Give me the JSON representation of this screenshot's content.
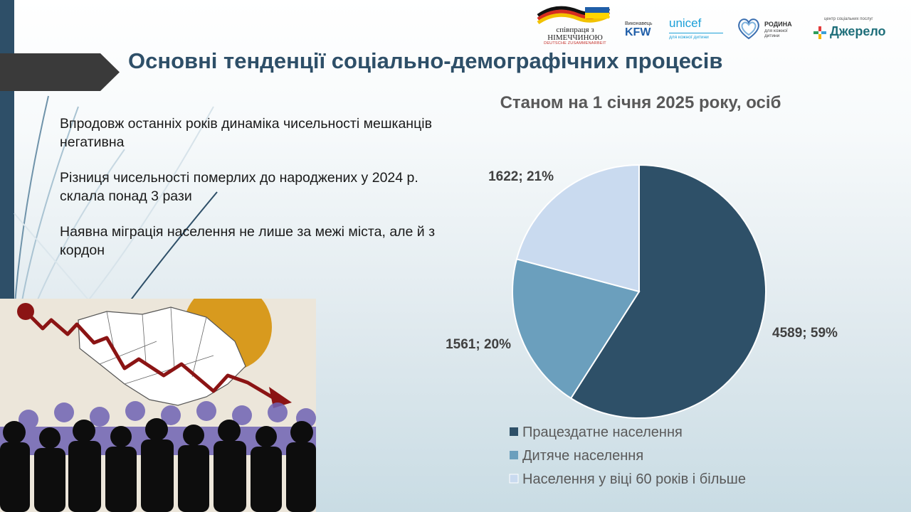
{
  "slide": {
    "title": "Основні тенденції соціально-демографічних процесів",
    "bullets": [
      "Впродовж останніх років динаміка чисельності мешканців негативна",
      "Різниця чисельності померлих до народжених у 2024 р. склала понад 3 рази",
      "Наявна міграція населення не лише за межі міста, але й з кордон"
    ]
  },
  "logos": {
    "giz": {
      "line1": "співпраця з",
      "line2": "НІМЕЧЧИНОЮ",
      "line3": "DEUTSCHE ZUSAMMENARBEIT"
    },
    "kfw": {
      "sub": "Виконавець",
      "main": "KFW"
    },
    "unicef": {
      "main": "unicef",
      "sub": "для кожної дитини"
    },
    "rodyna": {
      "main": "РОДИНА",
      "sub": "для кожної дитини"
    },
    "dzherelo": {
      "sub": "центр соціальних послуг",
      "main": "Джерело"
    }
  },
  "chart_data": {
    "type": "pie",
    "title": "Станом на 1 січня 2025 року, осіб",
    "categories": [
      "Працездатне населення",
      "Дитяче населення",
      "Населення у віці 60 років і більше"
    ],
    "values": [
      4589,
      1561,
      1622
    ],
    "labels": [
      "4589; 59%",
      "1561; 20%",
      "1622; 21%"
    ],
    "colors": [
      "#2e5068",
      "#6b9fbd",
      "#c9daef"
    ],
    "start_angle_deg": 0,
    "direction": "clockwise",
    "legend_position": "bottom"
  }
}
